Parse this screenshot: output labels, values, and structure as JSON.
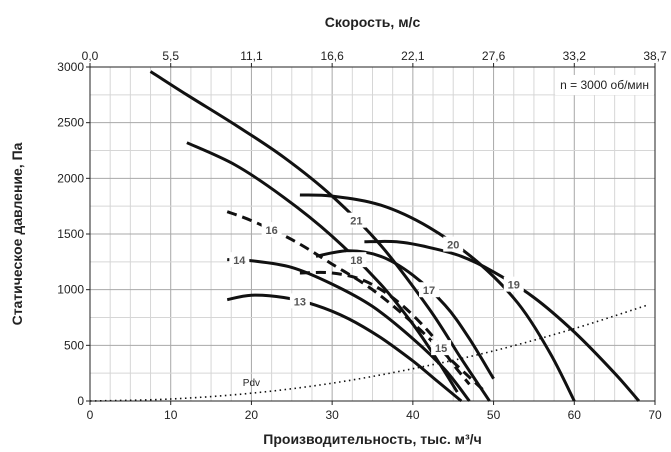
{
  "chart_data": {
    "type": "line",
    "xlabel": "Производительность, тыс. м³/ч",
    "ylabel": "Статическое давление, Па",
    "top_axis_label": "Скорость, м/с",
    "xlim": [
      0,
      70
    ],
    "ylim": [
      0,
      3000
    ],
    "x_ticks": [
      "0",
      "10",
      "20",
      "30",
      "40",
      "50",
      "60",
      "70"
    ],
    "y_ticks": [
      "0",
      "500",
      "1000",
      "1500",
      "2000",
      "2500",
      "3000"
    ],
    "top_ticks": [
      "0,0",
      "5,5",
      "11,1",
      "16,6",
      "22,1",
      "27,6",
      "33,2",
      "38,7"
    ],
    "grid": true,
    "annotation": "n = 3000 об/мин",
    "series": [
      {
        "name": "13",
        "dashed": false,
        "x": [
          17,
          20,
          24,
          28,
          32,
          36,
          40,
          43,
          46
        ],
        "y": [
          910,
          950,
          930,
          860,
          740,
          570,
          360,
          180,
          0
        ]
      },
      {
        "name": "14",
        "dashed": false,
        "x": [
          17,
          20,
          25,
          30,
          35,
          40,
          44,
          47
        ],
        "y": [
          1270,
          1260,
          1200,
          1050,
          850,
          560,
          280,
          0
        ]
      },
      {
        "name": "15",
        "dashed": true,
        "x": [
          26,
          30,
          34,
          38,
          42,
          45,
          47
        ],
        "y": [
          1150,
          1150,
          1080,
          900,
          620,
          330,
          150
        ]
      },
      {
        "name": "16",
        "dashed": true,
        "x": [
          17,
          20,
          25,
          30,
          35,
          40,
          45,
          49
        ],
        "y": [
          1700,
          1620,
          1450,
          1230,
          1000,
          700,
          350,
          80
        ]
      },
      {
        "name": "17",
        "dashed": false,
        "x": [
          28,
          32,
          36,
          40,
          44,
          47,
          50
        ],
        "y": [
          1300,
          1350,
          1300,
          1130,
          860,
          560,
          200
        ]
      },
      {
        "name": "18",
        "dashed": false,
        "x": [
          12,
          18,
          24,
          30,
          36,
          40,
          43,
          45.5
        ],
        "y": [
          2320,
          2120,
          1830,
          1480,
          1050,
          690,
          370,
          80
        ]
      },
      {
        "name": "19",
        "dashed": false,
        "x": [
          34,
          38,
          42,
          46,
          50,
          55,
          60,
          65,
          68
        ],
        "y": [
          1430,
          1430,
          1380,
          1300,
          1160,
          930,
          620,
          250,
          0
        ]
      },
      {
        "name": "20",
        "dashed": false,
        "x": [
          26,
          30,
          36,
          42,
          48,
          53,
          57,
          60
        ],
        "y": [
          1850,
          1840,
          1760,
          1560,
          1250,
          880,
          430,
          0
        ]
      },
      {
        "name": "21",
        "dashed": false,
        "x": [
          7.5,
          12,
          18,
          24,
          30,
          36,
          42,
          46,
          49.5
        ],
        "y": [
          2960,
          2750,
          2480,
          2190,
          1840,
          1400,
          830,
          380,
          0
        ]
      },
      {
        "name": "Pdv",
        "dashed": "dotted",
        "x": [
          0,
          10,
          20,
          30,
          40,
          50,
          60,
          69
        ],
        "y": [
          0,
          18,
          70,
          160,
          290,
          450,
          650,
          860
        ]
      }
    ]
  }
}
